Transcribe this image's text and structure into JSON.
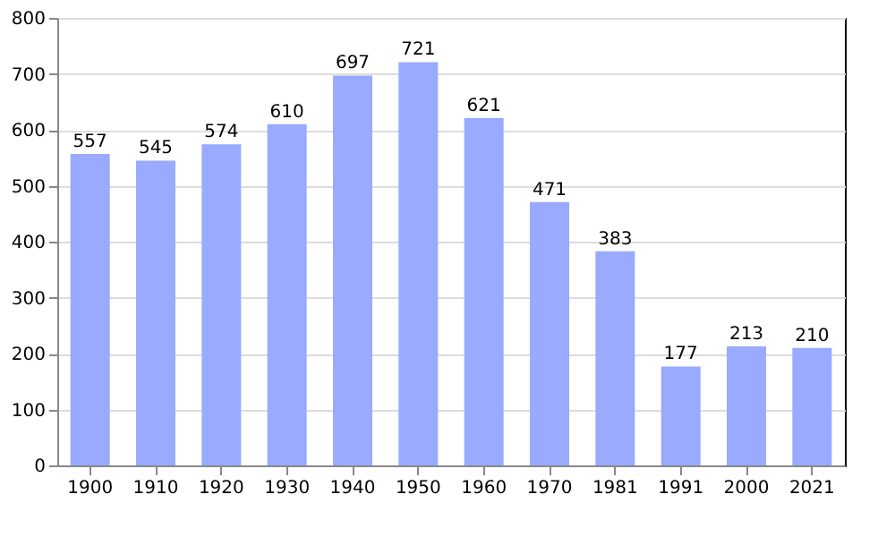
{
  "chart_data": {
    "type": "bar",
    "categories": [
      "1900",
      "1910",
      "1920",
      "1930",
      "1940",
      "1950",
      "1960",
      "1970",
      "1981",
      "1991",
      "2000",
      "2021"
    ],
    "values": [
      557,
      545,
      574,
      610,
      697,
      721,
      621,
      471,
      383,
      177,
      213,
      210
    ],
    "color": "#99aaff",
    "ylim": [
      0,
      800
    ],
    "yticks": [
      0,
      100,
      200,
      300,
      400,
      500,
      600,
      700,
      800
    ],
    "grid": "y",
    "data_labels": true
  }
}
